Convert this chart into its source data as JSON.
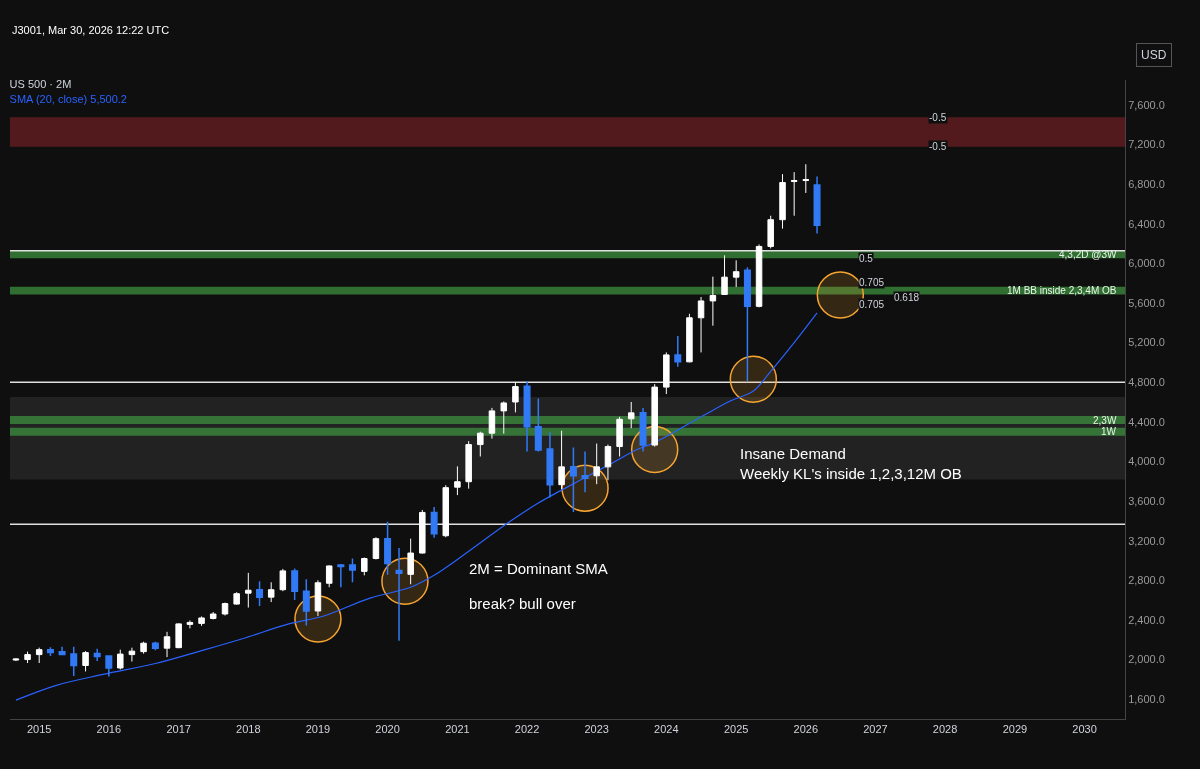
{
  "chart_data": {
    "type": "candlestick",
    "title": "US 500 · 2M",
    "subtitle": "SMA (20, close) 5,500.2",
    "ylabel": "USD",
    "x": [
      "2014-09",
      "2014-11",
      "2015-01",
      "2015-03",
      "2015-05",
      "2015-07",
      "2015-09",
      "2015-11",
      "2016-01",
      "2016-03",
      "2016-05",
      "2016-07",
      "2016-09",
      "2016-11",
      "2017-01",
      "2017-03",
      "2017-05",
      "2017-07",
      "2017-09",
      "2017-11",
      "2018-01",
      "2018-03",
      "2018-05",
      "2018-07",
      "2018-09",
      "2018-11",
      "2019-01",
      "2019-03",
      "2019-05",
      "2019-07",
      "2019-09",
      "2019-11",
      "2020-01",
      "2020-03",
      "2020-05",
      "2020-07",
      "2020-09",
      "2020-11",
      "2021-01",
      "2021-03",
      "2021-05",
      "2021-07",
      "2021-09",
      "2021-11",
      "2022-01",
      "2022-03",
      "2022-05",
      "2022-07",
      "2022-09",
      "2022-11",
      "2023-01",
      "2023-03",
      "2023-05",
      "2023-07",
      "2023-09",
      "2023-11",
      "2024-01",
      "2024-03",
      "2024-05",
      "2024-07",
      "2024-09",
      "2024-11",
      "2025-01",
      "2025-03",
      "2025-05",
      "2025-07",
      "2025-09",
      "2025-11",
      "2026-01",
      "2026-03"
    ],
    "ohlc": [
      [
        1995,
        2010,
        1985,
        2005
      ],
      [
        2000,
        2080,
        1965,
        2050
      ],
      [
        2050,
        2120,
        1965,
        2100
      ],
      [
        2100,
        2125,
        2035,
        2070
      ],
      [
        2080,
        2130,
        2045,
        2050
      ],
      [
        2055,
        2130,
        1835,
        1940
      ],
      [
        1940,
        2085,
        1880,
        2070
      ],
      [
        2060,
        2110,
        1985,
        2030
      ],
      [
        2035,
        2040,
        1830,
        1915
      ],
      [
        1915,
        2100,
        1900,
        2055
      ],
      [
        2050,
        2120,
        1980,
        2085
      ],
      [
        2080,
        2180,
        2060,
        2165
      ],
      [
        2165,
        2180,
        2095,
        2115
      ],
      [
        2115,
        2280,
        2025,
        2230
      ],
      [
        2120,
        2365,
        2115,
        2360
      ],
      [
        2355,
        2395,
        2315,
        2375
      ],
      [
        2365,
        2435,
        2340,
        2420
      ],
      [
        2415,
        2480,
        2405,
        2460
      ],
      [
        2460,
        2575,
        2445,
        2565
      ],
      [
        2560,
        2680,
        2555,
        2665
      ],
      [
        2670,
        2875,
        2525,
        2700
      ],
      [
        2705,
        2790,
        2540,
        2630
      ],
      [
        2630,
        2780,
        2580,
        2705
      ],
      [
        2705,
        2915,
        2690,
        2895
      ],
      [
        2895,
        2920,
        2600,
        2690
      ],
      [
        2690,
        2810,
        2345,
        2490
      ],
      [
        2490,
        2800,
        2440,
        2775
      ],
      [
        2770,
        2950,
        2730,
        2945
      ],
      [
        2955,
        2965,
        2730,
        2940
      ],
      [
        2955,
        3020,
        2780,
        2905
      ],
      [
        2890,
        3030,
        2850,
        3020
      ],
      [
        3020,
        3235,
        3010,
        3220
      ],
      [
        3220,
        3390,
        2855,
        2970
      ],
      [
        2900,
        3125,
        2190,
        2870
      ],
      [
        2860,
        3220,
        2760,
        3075
      ],
      [
        3075,
        3510,
        3070,
        3485
      ],
      [
        3485,
        3540,
        3230,
        3270
      ],
      [
        3250,
        3760,
        3235,
        3735
      ],
      [
        3740,
        3950,
        3660,
        3795
      ],
      [
        3795,
        4205,
        3725,
        4170
      ],
      [
        4170,
        4300,
        4050,
        4285
      ],
      [
        4285,
        4540,
        4230,
        4510
      ],
      [
        4510,
        4605,
        4280,
        4590
      ],
      [
        4600,
        4800,
        4495,
        4755
      ],
      [
        4760,
        4810,
        4100,
        4350
      ],
      [
        4350,
        4635,
        4100,
        4115
      ],
      [
        4125,
        4295,
        3635,
        3765
      ],
      [
        3765,
        4310,
        3720,
        3945
      ],
      [
        3945,
        4140,
        3490,
        3855
      ],
      [
        3855,
        4100,
        3690,
        3830
      ],
      [
        3855,
        4180,
        3770,
        3945
      ],
      [
        3945,
        4170,
        3810,
        4150
      ],
      [
        4150,
        4450,
        4050,
        4425
      ],
      [
        4430,
        4600,
        4335,
        4490
      ],
      [
        4490,
        4540,
        4100,
        4165
      ],
      [
        4165,
        4780,
        4150,
        4750
      ],
      [
        4750,
        5100,
        4680,
        5075
      ],
      [
        5075,
        5265,
        4955,
        5005
      ],
      [
        5005,
        5490,
        5000,
        5450
      ],
      [
        5450,
        5660,
        5100,
        5620
      ],
      [
        5620,
        5865,
        5370,
        5675
      ],
      [
        5685,
        6080,
        5680,
        5860
      ],
      [
        5860,
        6030,
        5760,
        5915
      ],
      [
        5930,
        5960,
        4810,
        5565
      ],
      [
        5565,
        6190,
        5555,
        6170
      ],
      [
        6170,
        6480,
        6150,
        6440
      ],
      [
        6440,
        6900,
        6350,
        6815
      ],
      [
        6825,
        6920,
        6480,
        6835
      ],
      [
        6835,
        7000,
        6710,
        6845
      ],
      [
        6790,
        6875,
        6300,
        6385
      ]
    ],
    "series": [
      {
        "type": "line",
        "color": "#2962ff",
        "marker": "none",
        "x": [
          "2014-09",
          "2015-04",
          "2015-12",
          "2016-09",
          "2017-05",
          "2017-12",
          "2018-08",
          "2019-02",
          "2019-10",
          "2020-05",
          "2020-09",
          "2021-01",
          "2021-10",
          "2022-03",
          "2022-07",
          "2023-03",
          "2023-08",
          "2023-11",
          "2024-07",
          "2024-12",
          "2025-04",
          "2025-07",
          "2025-11",
          "2026-03"
        ],
        "values": [
          1590,
          1740,
          1850,
          1960,
          2090,
          2210,
          2360,
          2440,
          2620,
          2730,
          2850,
          3010,
          3390,
          3580,
          3710,
          3960,
          4120,
          4190,
          4450,
          4610,
          4710,
          4910,
          5200,
          5500
        ]
      },
      {
        "type": "scatter",
        "color": "#f7a531",
        "marker": "circle",
        "x": [
          "2019-01",
          "2020-04",
          "2022-11",
          "2023-11",
          "2025-04",
          "2026-07"
        ],
        "values": [
          2410,
          2790,
          3730,
          4120,
          4830,
          5680
        ]
      }
    ],
    "bands": [
      {
        "axis": "y",
        "from": 3818,
        "to": 4650,
        "color": "#2a2a2a"
      },
      {
        "axis": "y",
        "from": 7175,
        "to": 7475,
        "color": "#6b1f24"
      },
      {
        "axis": "y",
        "from": 6050,
        "to": 6130,
        "label": "4,3,2D @3W",
        "color": "#3d8f3d"
      },
      {
        "axis": "y",
        "from": 5685,
        "to": 5764,
        "label": "1M BB inside 2,3,4M OB",
        "color": "#3d8f3d"
      },
      {
        "axis": "y",
        "from": 4378,
        "to": 4458,
        "label": "2,3W",
        "color": "#3d8f3d"
      },
      {
        "axis": "y",
        "from": 4260,
        "to": 4340,
        "label": "1W",
        "color": "#3d8f3d"
      }
    ],
    "ref_lines": [
      {
        "axis": "y",
        "value": 4800,
        "color": "#e0e0e0"
      },
      {
        "axis": "y",
        "value": 3366,
        "color": "#e0e0e0"
      },
      {
        "axis": "y",
        "value": 6127,
        "color": "#e0e0e0"
      }
    ],
    "annotations": [
      "J3001, Mar 30, 2026 12:22 UTC",
      "2M = Dominant SMA",
      "break? bull over",
      "Insane Demand\nWeekly KL's inside 1,2,3,12M OB",
      {
        "text": "0.5",
        "x": "2026-10",
        "y": 6050
      },
      {
        "text": "0.705",
        "x": "2026-10",
        "y": 5740
      },
      {
        "text": "0.705",
        "x": "2026-10",
        "y": 5650
      },
      {
        "text": "0.618",
        "x": "2027-04",
        "y": 5650
      },
      {
        "text": "-0.5",
        "x": "2027-10",
        "y": 7475
      },
      {
        "text": "-0.5",
        "x": "2027-10",
        "y": 7175
      }
    ],
    "xlim": [
      "2014-08-01",
      "2030-08-01"
    ],
    "xticks": [
      {
        "value": "2015",
        "label": "2015"
      },
      {
        "value": "2016",
        "label": "2016"
      },
      {
        "value": "2017",
        "label": "2017"
      },
      {
        "value": "2018",
        "label": "2018"
      },
      {
        "value": "2019",
        "label": "2019"
      },
      {
        "value": "2020",
        "label": "2020"
      },
      {
        "value": "2021",
        "label": "2021"
      },
      {
        "value": "2022",
        "label": "2022"
      },
      {
        "value": "2023",
        "label": "2023"
      },
      {
        "value": "2024",
        "label": "2024"
      },
      {
        "value": "2025",
        "label": "2025"
      },
      {
        "value": "2026",
        "label": "2026"
      },
      {
        "value": "2027",
        "label": "2027"
      },
      {
        "value": "2028",
        "label": "2028"
      },
      {
        "value": "2029",
        "label": "2029"
      },
      {
        "value": "2030",
        "label": "2030"
      }
    ],
    "ylim": [
      1400,
      7850
    ],
    "yticks": [
      {
        "value": 1600,
        "label": "1,600.0"
      },
      {
        "value": 2000,
        "label": "2,000.0"
      },
      {
        "value": 2400,
        "label": "2,400.0"
      },
      {
        "value": 2800,
        "label": "2,800.0"
      },
      {
        "value": 3200,
        "label": "3,200.0"
      },
      {
        "value": 3600,
        "label": "3,600.0"
      },
      {
        "value": 4000,
        "label": "4,000.0"
      },
      {
        "value": 4400,
        "label": "4,400.0"
      },
      {
        "value": 4800,
        "label": "4,800.0"
      },
      {
        "value": 5200,
        "label": "5,200.0"
      },
      {
        "value": 5600,
        "label": "5,600.0"
      },
      {
        "value": 6000,
        "label": "6,000.0"
      },
      {
        "value": 6400,
        "label": "6,400.0"
      },
      {
        "value": 6800,
        "label": "6,800.0"
      },
      {
        "value": 7200,
        "label": "7,200.0"
      },
      {
        "value": 7600,
        "label": "7,600.0"
      }
    ],
    "grid": false
  }
}
